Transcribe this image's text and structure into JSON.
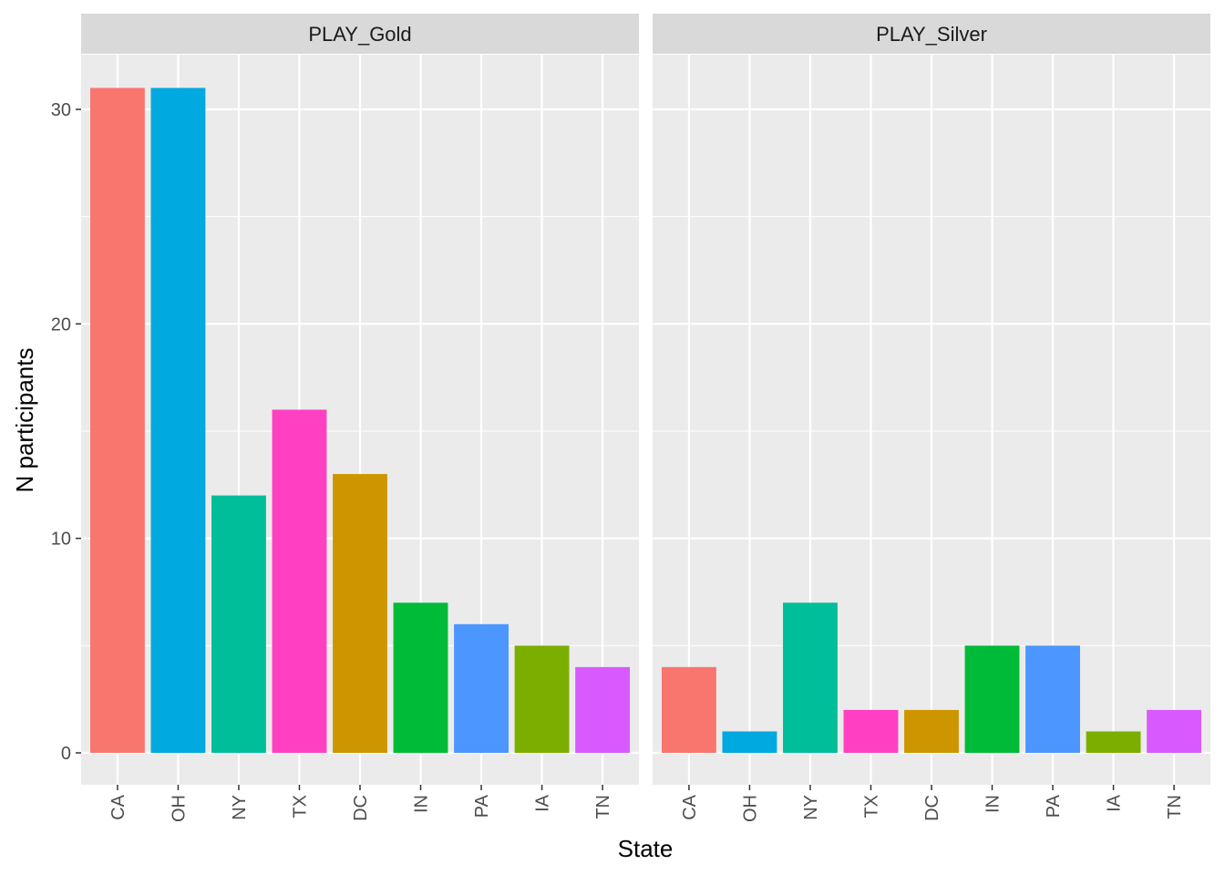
{
  "chart_data": {
    "type": "bar",
    "xlabel": "State",
    "ylabel": "N participants",
    "ylim": [
      0,
      32.5
    ],
    "yticks": [
      0,
      10,
      20,
      30
    ],
    "grid": true,
    "legend": "none",
    "categories": [
      "CA",
      "OH",
      "NY",
      "TX",
      "DC",
      "IN",
      "PA",
      "IA",
      "TN"
    ],
    "colors": [
      "#F8766D",
      "#00A9DF",
      "#00BE9A",
      "#FF40C2",
      "#CD9600",
      "#00BB38",
      "#4B96FF",
      "#7CAE00",
      "#D85AFF"
    ],
    "panels": [
      {
        "name": "PLAY_Gold",
        "values": [
          31,
          31,
          12,
          16,
          13,
          7,
          6,
          5,
          4
        ]
      },
      {
        "name": "PLAY_Silver",
        "values": [
          4,
          1,
          7,
          2,
          2,
          5,
          5,
          1,
          2
        ]
      }
    ]
  }
}
